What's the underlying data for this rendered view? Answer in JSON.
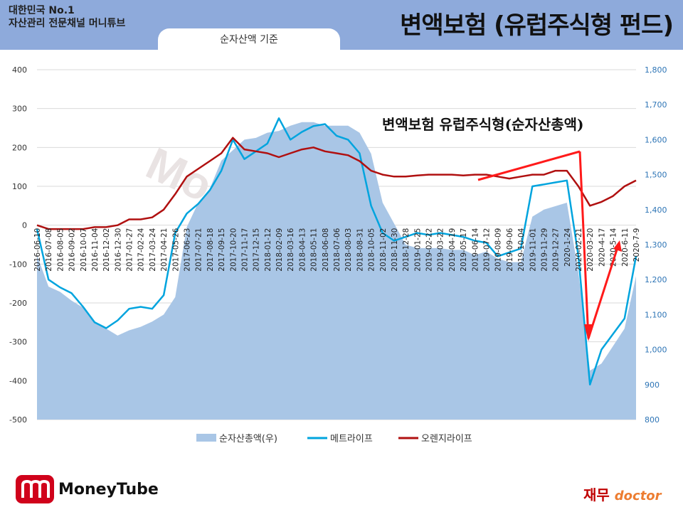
{
  "header": {
    "channel_line1": "대한민국 No.1",
    "channel_line2": "자산관리 전문채널 머니튜브",
    "basis": "순자산액 기준",
    "main_title": "변액보험 (유럽주식형 펀드)"
  },
  "branding": {
    "logo_text": "MoneyTube",
    "badge_kr": "재무",
    "badge_en": "doctor",
    "watermark": "MoneyTube"
  },
  "colors": {
    "area": "#a9c6e6",
    "metlife": "#00a4de",
    "orange": "#b01010",
    "annotation": "#ff1a1a",
    "right_axis": "#2e75b6"
  },
  "chart_data": {
    "type": "line",
    "title": "변액보험 유럽주식형(순자산총액)",
    "left_axis": {
      "ticks": [
        "400",
        "300",
        "200",
        "100",
        "0",
        "-100",
        "-200",
        "-300",
        "-400",
        "-500"
      ],
      "min": -500,
      "max": 400
    },
    "right_axis": {
      "ticks": [
        "1,800",
        "1,700",
        "1,600",
        "1,500",
        "1,400",
        "1,300",
        "1,200",
        "1,100",
        "1,000",
        "900",
        "800"
      ],
      "min": 800,
      "max": 1800
    },
    "x_labels": [
      "2016-06-10",
      "2016-07-08",
      "2016-08-05",
      "2016-09-02",
      "2016-10-07",
      "2016-11-04",
      "2016-12-02",
      "2016-12-30",
      "2017-01-27",
      "2017-02-24",
      "2017-03-24",
      "2017-04-21",
      "2017-05-26",
      "2017-06-23",
      "2017-07-21",
      "2017-08-18",
      "2017-09-15",
      "2017-10-20",
      "2017-11-17",
      "2017-12-15",
      "2018-01-12",
      "2018-02-09",
      "2018-03-16",
      "2018-04-13",
      "2018-05-11",
      "2018-06-08",
      "2018-07-06",
      "2018-08-03",
      "2018-08-31",
      "2018-10-05",
      "2018-11-02",
      "2018-11-30",
      "2018-12-28",
      "2019-01-25",
      "2019-02-22",
      "2019-03-22",
      "2019-04-19",
      "2019-05-17",
      "2019-06-14",
      "2019-07-12",
      "2019-08-09",
      "2019-09-06",
      "2019-10-04",
      "2019-11-01",
      "2019-11-29",
      "2019-12-27",
      "2020-1-24",
      "2020-02-21",
      "2020-03-20",
      "2020-4-17",
      "2020-5-14",
      "2020-6-11",
      "2020-7-9"
    ],
    "series": [
      {
        "name": "순자산총액(우)",
        "axis": "right",
        "values": [
          1270,
          1180,
          1165,
          1140,
          1120,
          1080,
          1060,
          1040,
          1055,
          1065,
          1080,
          1100,
          1150,
          1350,
          1420,
          1460,
          1540,
          1570,
          1600,
          1605,
          1620,
          1625,
          1640,
          1650,
          1650,
          1640,
          1640,
          1640,
          1620,
          1560,
          1420,
          1360,
          1300,
          1290,
          1290,
          1290,
          1285,
          1285,
          1270,
          1280,
          1260,
          1250,
          1250,
          1380,
          1400,
          1410,
          1420,
          1220,
          940,
          960,
          1010,
          1060,
          1210
        ]
      },
      {
        "name": "메트라이프",
        "axis": "left",
        "values": [
          -10,
          -140,
          -160,
          -175,
          -210,
          -250,
          -265,
          -245,
          -215,
          -210,
          -215,
          -180,
          -20,
          30,
          55,
          90,
          140,
          220,
          170,
          190,
          210,
          275,
          220,
          240,
          255,
          260,
          230,
          220,
          185,
          50,
          -20,
          -40,
          -30,
          -20,
          -25,
          -20,
          -25,
          -30,
          -40,
          -45,
          -80,
          -70,
          -60,
          100,
          105,
          110,
          115,
          -80,
          -410,
          -320,
          -280,
          -240,
          -80
        ]
      },
      {
        "name": "오렌지라이프",
        "axis": "left",
        "values": [
          0,
          -10,
          -10,
          -10,
          -10,
          -5,
          -5,
          0,
          15,
          15,
          20,
          40,
          80,
          125,
          145,
          165,
          185,
          225,
          195,
          190,
          185,
          175,
          185,
          195,
          200,
          190,
          185,
          180,
          165,
          140,
          130,
          125,
          125,
          128,
          130,
          130,
          130,
          128,
          130,
          130,
          125,
          120,
          125,
          130,
          130,
          140,
          140,
          100,
          50,
          60,
          75,
          100,
          115
        ]
      }
    ],
    "legend": [
      "순자산총액(우)",
      "메트라이프",
      "오렌지라이프"
    ],
    "legend_position": "bottom"
  }
}
